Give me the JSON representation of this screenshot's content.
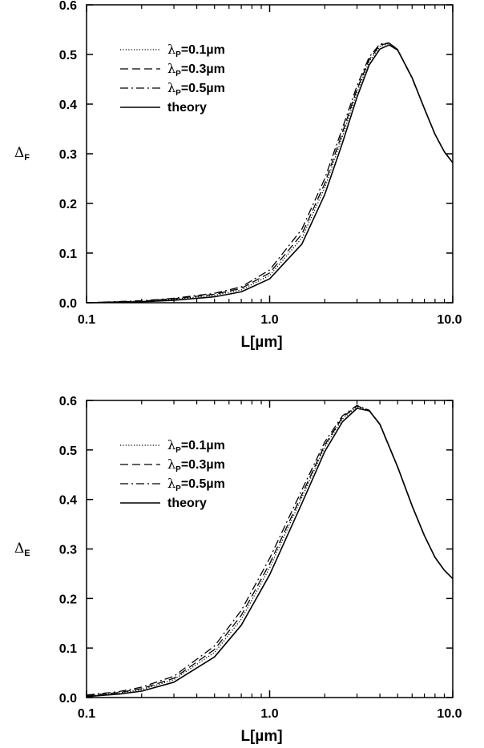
{
  "chart_data": [
    {
      "type": "line",
      "title": "",
      "xlabel": "L[µm]",
      "ylabel": "ΔF",
      "ylabel_symbol": "Δ",
      "ylabel_subscript": "F",
      "xscale": "log",
      "xlim": [
        0.1,
        10.0
      ],
      "ylim": [
        0.0,
        0.6
      ],
      "x_ticks": [
        "0.1",
        "1.0",
        "10.0"
      ],
      "y_ticks": [
        "0.0",
        "0.1",
        "0.2",
        "0.3",
        "0.4",
        "0.5",
        "0.6"
      ],
      "grid": false,
      "legend_position": "top-left",
      "legend": [
        {
          "prefix": "λ",
          "subscript": "P",
          "suffix": "=0.1µm",
          "style": "dotted"
        },
        {
          "prefix": "λ",
          "subscript": "P",
          "suffix": "=0.3µm",
          "style": "dashed"
        },
        {
          "prefix": "λ",
          "subscript": "P",
          "suffix": "=0.5µm",
          "style": "dashdot"
        },
        {
          "prefix": "",
          "subscript": "",
          "suffix": "theory",
          "style": "solid"
        }
      ],
      "x": [
        0.1,
        0.2,
        0.3,
        0.5,
        0.7,
        1.0,
        1.5,
        2.0,
        2.5,
        3.0,
        3.5,
        4.0,
        4.5,
        5.0,
        6.0,
        7.0,
        8.0,
        9.0,
        10.0
      ],
      "series": [
        {
          "name": "λP=0.1µm",
          "style": "dotted",
          "values": [
            0.0,
            0.003,
            0.007,
            0.015,
            0.026,
            0.055,
            0.13,
            0.232,
            0.335,
            0.424,
            0.486,
            0.516,
            0.522,
            0.51,
            0.453,
            0.391,
            0.339,
            0.304,
            0.282
          ]
        },
        {
          "name": "λP=0.3µm",
          "style": "dashed",
          "values": [
            0.0,
            0.003,
            0.008,
            0.017,
            0.029,
            0.06,
            0.138,
            0.24,
            0.343,
            0.43,
            0.49,
            0.519,
            0.523,
            0.51,
            0.453,
            0.391,
            0.339,
            0.304,
            0.282
          ]
        },
        {
          "name": "λP=0.5µm",
          "style": "dashdot",
          "values": [
            0.0,
            0.004,
            0.009,
            0.019,
            0.032,
            0.066,
            0.148,
            0.25,
            0.352,
            0.437,
            0.495,
            0.521,
            0.523,
            0.509,
            0.452,
            0.391,
            0.339,
            0.304,
            0.282
          ]
        },
        {
          "name": "theory",
          "style": "solid",
          "values": [
            0.0,
            0.002,
            0.005,
            0.012,
            0.022,
            0.048,
            0.118,
            0.218,
            0.322,
            0.414,
            0.479,
            0.511,
            0.519,
            0.509,
            0.453,
            0.391,
            0.339,
            0.304,
            0.282
          ]
        }
      ]
    },
    {
      "type": "line",
      "title": "",
      "xlabel": "L[µm]",
      "ylabel": "ΔE",
      "ylabel_symbol": "Δ",
      "ylabel_subscript": "E",
      "xscale": "log",
      "xlim": [
        0.1,
        10.0
      ],
      "ylim": [
        0.0,
        0.6
      ],
      "x_ticks": [
        "0.1",
        "1.0",
        "10.0"
      ],
      "y_ticks": [
        "0.0",
        "0.1",
        "0.2",
        "0.3",
        "0.4",
        "0.5",
        "0.6"
      ],
      "grid": false,
      "legend_position": "top-left",
      "legend": [
        {
          "prefix": "λ",
          "subscript": "P",
          "suffix": "=0.1µm",
          "style": "dotted"
        },
        {
          "prefix": "λ",
          "subscript": "P",
          "suffix": "=0.3µm",
          "style": "dashed"
        },
        {
          "prefix": "λ",
          "subscript": "P",
          "suffix": "=0.5µm",
          "style": "dashdot"
        },
        {
          "prefix": "",
          "subscript": "",
          "suffix": "theory",
          "style": "solid"
        }
      ],
      "x": [
        0.1,
        0.15,
        0.2,
        0.3,
        0.5,
        0.7,
        1.0,
        1.5,
        2.0,
        2.5,
        3.0,
        3.5,
        4.0,
        5.0,
        6.0,
        7.0,
        8.0,
        9.0,
        10.0
      ],
      "series": [
        {
          "name": "λP=0.1µm",
          "style": "dotted",
          "values": [
            0.003,
            0.009,
            0.016,
            0.036,
            0.091,
            0.158,
            0.262,
            0.404,
            0.506,
            0.563,
            0.587,
            0.58,
            0.552,
            0.466,
            0.387,
            0.327,
            0.283,
            0.257,
            0.24
          ]
        },
        {
          "name": "λP=0.3µm",
          "style": "dashed",
          "values": [
            0.004,
            0.01,
            0.018,
            0.039,
            0.097,
            0.166,
            0.27,
            0.41,
            0.51,
            0.566,
            0.589,
            0.58,
            0.552,
            0.466,
            0.387,
            0.327,
            0.283,
            0.257,
            0.24
          ]
        },
        {
          "name": "λP=0.5µm",
          "style": "dashdot",
          "values": [
            0.005,
            0.012,
            0.021,
            0.043,
            0.104,
            0.176,
            0.281,
            0.419,
            0.516,
            0.569,
            0.59,
            0.58,
            0.551,
            0.465,
            0.387,
            0.327,
            0.283,
            0.257,
            0.24
          ]
        },
        {
          "name": "theory",
          "style": "solid",
          "values": [
            0.002,
            0.007,
            0.013,
            0.031,
            0.082,
            0.146,
            0.248,
            0.392,
            0.497,
            0.557,
            0.584,
            0.579,
            0.552,
            0.466,
            0.387,
            0.327,
            0.283,
            0.257,
            0.24
          ]
        }
      ]
    }
  ]
}
